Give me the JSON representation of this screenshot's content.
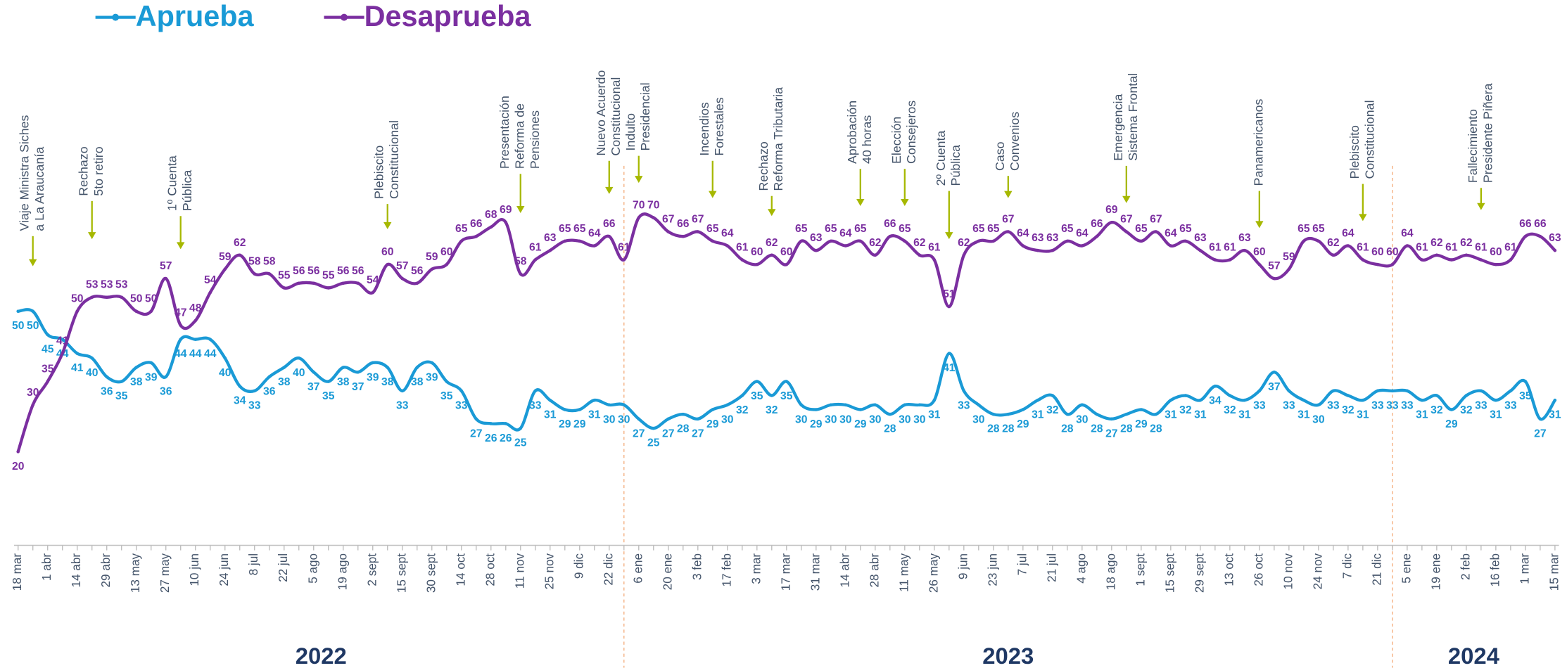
{
  "chart_data": {
    "type": "line",
    "categories": [
      "18 mar",
      null,
      "1 abr",
      null,
      "14 abr",
      null,
      "29 abr",
      null,
      "13 may",
      null,
      "27 may",
      null,
      "10 jun",
      null,
      "24 jun",
      null,
      "8 jul",
      null,
      "22 jul",
      null,
      "5 ago",
      null,
      "19 ago",
      null,
      "2 sept",
      null,
      "15 sept",
      null,
      "30 sept",
      null,
      "14 oct",
      null,
      "28 oct",
      null,
      "11 nov",
      null,
      "25 nov",
      null,
      "9 dic",
      null,
      "22 dic",
      null,
      "6 ene",
      null,
      "20 ene",
      null,
      "3 feb",
      null,
      "17 feb",
      null,
      "3 mar",
      null,
      "17 mar",
      null,
      "31 mar",
      null,
      "14 abr",
      null,
      "28 abr",
      null,
      "11 may",
      null,
      "26 may",
      null,
      "9 jun",
      null,
      "23 jun",
      null,
      "7 jul",
      null,
      "21 jul",
      null,
      "4 ago",
      null,
      "18 ago",
      null,
      "1 sept",
      null,
      "15 sept",
      null,
      "29 sept",
      null,
      "13 oct",
      null,
      "26 oct",
      null,
      "10 nov",
      null,
      "24 nov",
      null,
      "7 dic",
      null,
      "21 dic",
      null,
      "5 ene",
      null,
      "19 ene",
      null,
      "2 feb",
      null,
      "16 feb",
      null,
      "1 mar",
      null,
      "15 mar"
    ],
    "series": [
      {
        "name": "Aprueba",
        "color": "#1a9ad6",
        "values": [
          50,
          50,
          45,
          44,
          41,
          40,
          36,
          35,
          38,
          39,
          36,
          44,
          44,
          44,
          40,
          34,
          33,
          36,
          38,
          40,
          37,
          35,
          38,
          37,
          39,
          38,
          33,
          38,
          39,
          35,
          33,
          27,
          26,
          26,
          25,
          33,
          31,
          29,
          29,
          31,
          30,
          30,
          27,
          25,
          27,
          28,
          27,
          29,
          30,
          32,
          35,
          32,
          35,
          30,
          29,
          30,
          30,
          29,
          30,
          28,
          30,
          30,
          31,
          41,
          33,
          30,
          28,
          28,
          29,
          31,
          32,
          28,
          30,
          28,
          27,
          28,
          29,
          28,
          31,
          32,
          31,
          34,
          32,
          31,
          33,
          37,
          33,
          31,
          30,
          33,
          32,
          31,
          33,
          33,
          33,
          31,
          32,
          29,
          32,
          33,
          31,
          33,
          35,
          27,
          31
        ]
      },
      {
        "name": "Desaprueba",
        "color": "#7b2fa0",
        "values": [
          20,
          30,
          35,
          41,
          50,
          53,
          53,
          53,
          50,
          50,
          57,
          47,
          48,
          54,
          59,
          62,
          58,
          58,
          55,
          56,
          56,
          55,
          56,
          56,
          54,
          60,
          57,
          56,
          59,
          60,
          65,
          66,
          68,
          69,
          58,
          61,
          63,
          65,
          65,
          64,
          66,
          61,
          70,
          70,
          67,
          66,
          67,
          65,
          64,
          61,
          60,
          62,
          60,
          65,
          63,
          65,
          64,
          65,
          62,
          66,
          65,
          62,
          61,
          51,
          62,
          65,
          65,
          67,
          64,
          63,
          63,
          65,
          64,
          66,
          69,
          67,
          65,
          67,
          64,
          65,
          63,
          61,
          61,
          63,
          60,
          57,
          59,
          65,
          65,
          62,
          64,
          61,
          60,
          60,
          64,
          61,
          62,
          61,
          62,
          61,
          60,
          61,
          66,
          66,
          63
        ]
      }
    ],
    "ylim": [
      0,
      80
    ],
    "years": [
      "2022",
      "2023",
      "2024"
    ],
    "annotations": [
      {
        "lines": [
          "Viaje Ministra Siches",
          "a La Araucanía"
        ],
        "index": 1
      },
      {
        "lines": [
          "Rechazo",
          "5to retiro"
        ],
        "index": 5
      },
      {
        "lines": [
          "1º Cuenta",
          "Pública"
        ],
        "index": 11
      },
      {
        "lines": [
          "Plebiscito",
          "Constitucional"
        ],
        "index": 25
      },
      {
        "lines": [
          "Presentación",
          "Reforma de",
          "Pensiones"
        ],
        "index": 34
      },
      {
        "lines": [
          "Nuevo Acuerdo",
          "Constitucional"
        ],
        "index": 40
      },
      {
        "lines": [
          "Indulto",
          "Presidencial"
        ],
        "index": 42
      },
      {
        "lines": [
          "Incendios",
          "Forestales"
        ],
        "index": 47
      },
      {
        "lines": [
          "Rechazo",
          "Reforma Tributaria"
        ],
        "index": 51
      },
      {
        "lines": [
          "Aprobación",
          "40 horas"
        ],
        "index": 57
      },
      {
        "lines": [
          "Elección",
          "Consejeros"
        ],
        "index": 60
      },
      {
        "lines": [
          "2º Cuenta",
          "Pública"
        ],
        "index": 63
      },
      {
        "lines": [
          "Caso",
          "Convenios"
        ],
        "index": 67
      },
      {
        "lines": [
          "Emergencia",
          "Sistema Frontal"
        ],
        "index": 75
      },
      {
        "lines": [
          "Panamericanos"
        ],
        "index": 84
      },
      {
        "lines": [
          "Plebiscito",
          "Constitucional"
        ],
        "index": 91
      },
      {
        "lines": [
          "Fallecimiento",
          "Presidente Piñera"
        ],
        "index": 99
      }
    ]
  }
}
